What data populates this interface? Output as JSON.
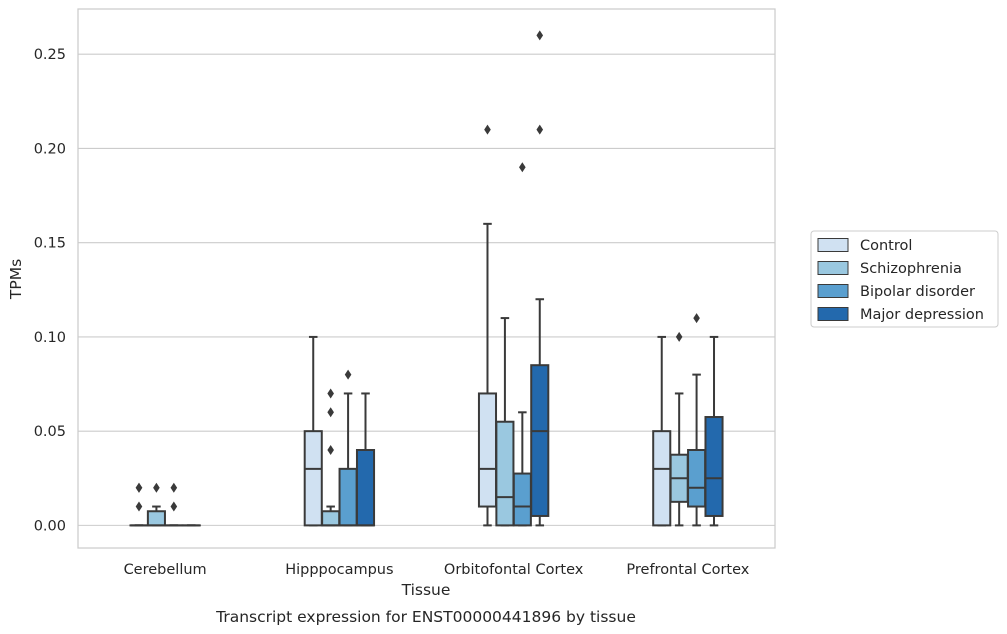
{
  "chart_data": {
    "type": "boxplot",
    "title": "Transcript expression for ENST00000441896 by tissue",
    "xlabel": "Tissue",
    "ylabel": "TPMs",
    "ylim": [
      -0.012,
      0.274
    ],
    "yticks": [
      0.0,
      0.05,
      0.1,
      0.15,
      0.2,
      0.25
    ],
    "ytick_labels": [
      "0.00",
      "0.05",
      "0.10",
      "0.15",
      "0.20",
      "0.25"
    ],
    "grid": true,
    "legend_position": "right",
    "categories": [
      "Cerebellum",
      "Hipppocampus",
      "Orbitofontal Cortex",
      "Prefrontal Cortex"
    ],
    "series": [
      {
        "name": "Control",
        "color": "#d0e1f2",
        "boxes": [
          {
            "whislo": 0.0,
            "q1": 0.0,
            "med": 0.0,
            "q3": 0.0,
            "whishi": 0.0,
            "fliers": [
              0.01,
              0.02,
              0.02
            ]
          },
          {
            "whislo": 0.0,
            "q1": 0.0,
            "med": 0.03,
            "q3": 0.05,
            "whishi": 0.1,
            "fliers": []
          },
          {
            "whislo": 0.0,
            "q1": 0.01,
            "med": 0.03,
            "q3": 0.07,
            "whishi": 0.16,
            "fliers": [
              0.21
            ]
          },
          {
            "whislo": 0.0,
            "q1": 0.0,
            "med": 0.03,
            "q3": 0.05,
            "whishi": 0.1,
            "fliers": []
          }
        ]
      },
      {
        "name": "Schizophrenia",
        "color": "#9ac8e0",
        "boxes": [
          {
            "whislo": 0.0,
            "q1": 0.0,
            "med": 0.0,
            "q3": 0.0075,
            "whishi": 0.01,
            "fliers": [
              0.02
            ]
          },
          {
            "whislo": 0.0,
            "q1": 0.0,
            "med": 0.0,
            "q3": 0.0075,
            "whishi": 0.01,
            "fliers": [
              0.04,
              0.06,
              0.07
            ]
          },
          {
            "whislo": 0.0,
            "q1": 0.0,
            "med": 0.015,
            "q3": 0.055,
            "whishi": 0.11,
            "fliers": []
          },
          {
            "whislo": 0.0,
            "q1": 0.0125,
            "med": 0.025,
            "q3": 0.0375,
            "whishi": 0.07,
            "fliers": [
              0.1
            ]
          }
        ]
      },
      {
        "name": "Bipolar disorder",
        "color": "#5a9fcf",
        "boxes": [
          {
            "whislo": 0.0,
            "q1": 0.0,
            "med": 0.0,
            "q3": 0.0,
            "whishi": 0.0,
            "fliers": [
              0.01,
              0.02
            ]
          },
          {
            "whislo": 0.0,
            "q1": 0.0,
            "med": 0.0,
            "q3": 0.03,
            "whishi": 0.07,
            "fliers": [
              0.08
            ]
          },
          {
            "whislo": 0.0,
            "q1": 0.0,
            "med": 0.01,
            "q3": 0.0275,
            "whishi": 0.06,
            "fliers": [
              0.19
            ]
          },
          {
            "whislo": 0.0,
            "q1": 0.01,
            "med": 0.02,
            "q3": 0.04,
            "whishi": 0.08,
            "fliers": [
              0.11
            ]
          }
        ]
      },
      {
        "name": "Major depression",
        "color": "#2369ad",
        "boxes": [
          {
            "whislo": 0.0,
            "q1": 0.0,
            "med": 0.0,
            "q3": 0.0,
            "whishi": 0.0,
            "fliers": []
          },
          {
            "whislo": 0.0,
            "q1": 0.0,
            "med": 0.0,
            "q3": 0.04,
            "whishi": 0.07,
            "fliers": []
          },
          {
            "whislo": 0.0,
            "q1": 0.005,
            "med": 0.05,
            "q3": 0.085,
            "whishi": 0.12,
            "fliers": [
              0.21,
              0.26
            ]
          },
          {
            "whislo": 0.0,
            "q1": 0.005,
            "med": 0.025,
            "q3": 0.0575,
            "whishi": 0.1,
            "fliers": []
          }
        ]
      }
    ]
  }
}
